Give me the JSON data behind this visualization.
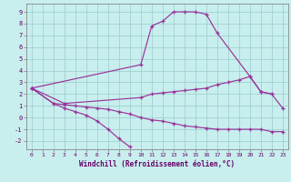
{
  "xlabel": "Windchill (Refroidissement éolien,°C)",
  "bg_color": "#c8eeee",
  "line_color": "#993399",
  "xlim": [
    -0.5,
    23.5
  ],
  "ylim": [
    -2.7,
    9.7
  ],
  "xticks": [
    0,
    1,
    2,
    3,
    4,
    5,
    6,
    7,
    8,
    9,
    10,
    11,
    12,
    13,
    14,
    15,
    16,
    17,
    18,
    19,
    20,
    21,
    22,
    23
  ],
  "yticks": [
    -2,
    -1,
    0,
    1,
    2,
    3,
    4,
    5,
    6,
    7,
    8,
    9
  ],
  "lines_clean": [
    {
      "name": "bell_curve",
      "x": [
        0,
        10,
        11,
        12,
        13,
        14,
        15,
        16,
        17,
        20,
        21,
        22,
        23
      ],
      "y": [
        2.5,
        4.5,
        7.8,
        8.2,
        9.0,
        9.0,
        9.0,
        8.8,
        7.2,
        3.5,
        2.2,
        2.0,
        0.8
      ]
    },
    {
      "name": "upper_flat",
      "x": [
        0,
        3,
        10,
        11,
        12,
        13,
        14,
        15,
        16,
        17,
        18,
        19,
        20,
        21,
        22
      ],
      "y": [
        2.5,
        1.2,
        1.7,
        2.0,
        2.1,
        2.2,
        2.3,
        2.4,
        2.5,
        2.8,
        3.0,
        3.2,
        3.5,
        2.2,
        2.0
      ]
    },
    {
      "name": "lower_flat",
      "x": [
        0,
        2,
        3,
        4,
        5,
        6,
        7,
        8,
        9,
        10,
        11,
        12,
        13,
        14,
        15,
        16,
        17,
        18,
        19,
        20,
        21,
        22,
        23
      ],
      "y": [
        2.5,
        1.2,
        1.1,
        1.0,
        0.9,
        0.8,
        0.7,
        0.5,
        0.3,
        0.0,
        -0.2,
        -0.3,
        -0.5,
        -0.7,
        -0.8,
        -0.9,
        -1.0,
        -1.0,
        -1.0,
        -1.0,
        -1.0,
        -1.2,
        -1.2
      ]
    },
    {
      "name": "bottom_curve",
      "x": [
        0,
        2,
        3,
        4,
        5,
        6,
        7,
        8,
        9
      ],
      "y": [
        2.5,
        1.2,
        0.8,
        0.5,
        0.2,
        -0.3,
        -1.0,
        -1.8,
        -2.5
      ]
    }
  ]
}
